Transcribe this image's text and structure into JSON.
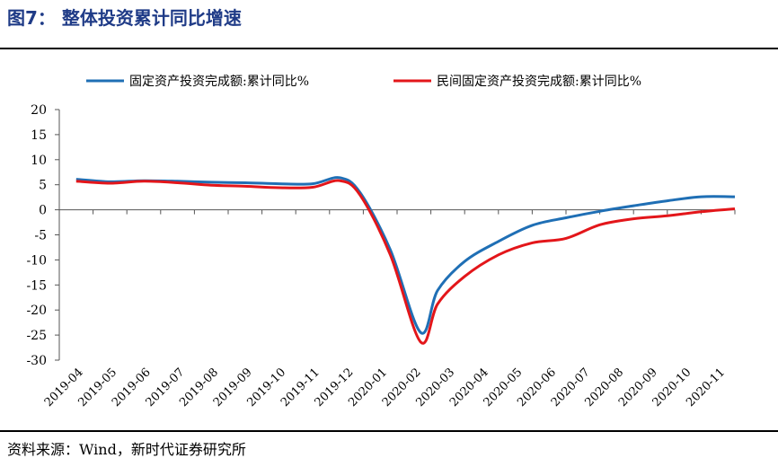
{
  "figure": {
    "title": "图7： 整体投资累计同比增速",
    "source": "资料来源：Wind，新时代证券研究所"
  },
  "chart_data": {
    "type": "line",
    "title": "",
    "xlabel": "",
    "ylabel": "",
    "ylim": [
      -30,
      20
    ],
    "yticks": [
      "20",
      "15",
      "10",
      "5",
      "0",
      "-5",
      "-10",
      "-15",
      "-20",
      "-25",
      "-30"
    ],
    "categories": [
      "2019-04",
      "2019-05",
      "2019-06",
      "2019-07",
      "2019-08",
      "2019-09",
      "2019-10",
      "2019-11",
      "2019-12",
      "2020-01",
      "2020-02",
      "2020-03",
      "2020-04",
      "2020-05",
      "2020-06",
      "2020-07",
      "2020-08",
      "2020-09",
      "2020-10",
      "2020-11"
    ],
    "legend_position": "top",
    "grid": false,
    "series": [
      {
        "name": "固定资产投资完成额:累计同比%",
        "color": "#1f6fb5",
        "x": [
          0,
          1,
          2,
          3,
          4,
          5,
          6,
          7,
          7.8,
          8.4,
          9.3,
          10.2,
          10.7,
          11.5,
          12.5,
          13.5,
          14.5,
          15.5,
          16.5,
          17.5,
          18.5,
          19.5
        ],
        "values": [
          6.1,
          5.6,
          5.8,
          5.7,
          5.5,
          5.4,
          5.2,
          5.2,
          6.4,
          3.5,
          -8.0,
          -24.5,
          -16.1,
          -10.3,
          -6.3,
          -3.1,
          -1.6,
          -0.3,
          0.8,
          1.8,
          2.6,
          2.6
        ]
      },
      {
        "name": "民间固定资产投资完成额:累计同比%",
        "color": "#e3161a",
        "x": [
          0,
          1,
          2,
          3,
          4,
          5,
          6,
          7,
          7.8,
          8.4,
          9.3,
          10.2,
          10.7,
          11.5,
          12.5,
          13.5,
          14.5,
          15.5,
          16.5,
          17.5,
          18.5,
          19.5
        ],
        "values": [
          5.7,
          5.3,
          5.7,
          5.4,
          4.9,
          4.7,
          4.4,
          4.5,
          5.8,
          3.0,
          -9.0,
          -26.4,
          -18.8,
          -13.3,
          -9.0,
          -6.6,
          -5.7,
          -3.0,
          -1.8,
          -1.2,
          -0.4,
          0.2
        ]
      }
    ]
  }
}
